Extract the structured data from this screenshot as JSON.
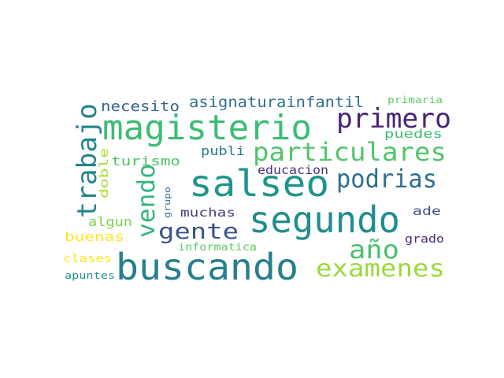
{
  "word_cloud": {
    "words": [
      {
        "text": "magisterio",
        "color": "#3dbc74"
      },
      {
        "text": "salseo",
        "color": "#1f948c"
      },
      {
        "text": "segundo",
        "color": "#228c8d"
      },
      {
        "text": "buscando",
        "color": "#277e8e"
      },
      {
        "text": "particulares",
        "color": "#51c56a"
      },
      {
        "text": "primero",
        "color": "#482475"
      },
      {
        "text": "trabajo",
        "color": "#25848e"
      },
      {
        "text": "podrias",
        "color": "#2c718e"
      },
      {
        "text": "vendo",
        "color": "#33b67a"
      },
      {
        "text": "gente",
        "color": "#3a548c"
      },
      {
        "text": "año",
        "color": "#4ac16d"
      },
      {
        "text": "examenes",
        "color": "#9bd93c"
      },
      {
        "text": "asignaturainfantil",
        "color": "#2e6f8e"
      },
      {
        "text": "necesito",
        "color": "#33638d"
      },
      {
        "text": "publi",
        "color": "#29798e"
      },
      {
        "text": "turismo",
        "color": "#4cc26c"
      },
      {
        "text": "puedes",
        "color": "#3dbc74"
      },
      {
        "text": "educacion",
        "color": "#46327e"
      },
      {
        "text": "muchas",
        "color": "#433e85"
      },
      {
        "text": "algun",
        "color": "#7ad151"
      },
      {
        "text": "buenas",
        "color": "#fde725"
      },
      {
        "text": "informatica",
        "color": "#5ec962"
      },
      {
        "text": "clases",
        "color": "#fde725"
      },
      {
        "text": "apuntes",
        "color": "#21918c"
      },
      {
        "text": "doble",
        "color": "#addc30"
      },
      {
        "text": "grupo",
        "color": "#2c728e"
      },
      {
        "text": "ade",
        "color": "#3b528b"
      },
      {
        "text": "grado",
        "color": "#482878"
      },
      {
        "text": "primaria",
        "color": "#5ec962"
      }
    ]
  }
}
